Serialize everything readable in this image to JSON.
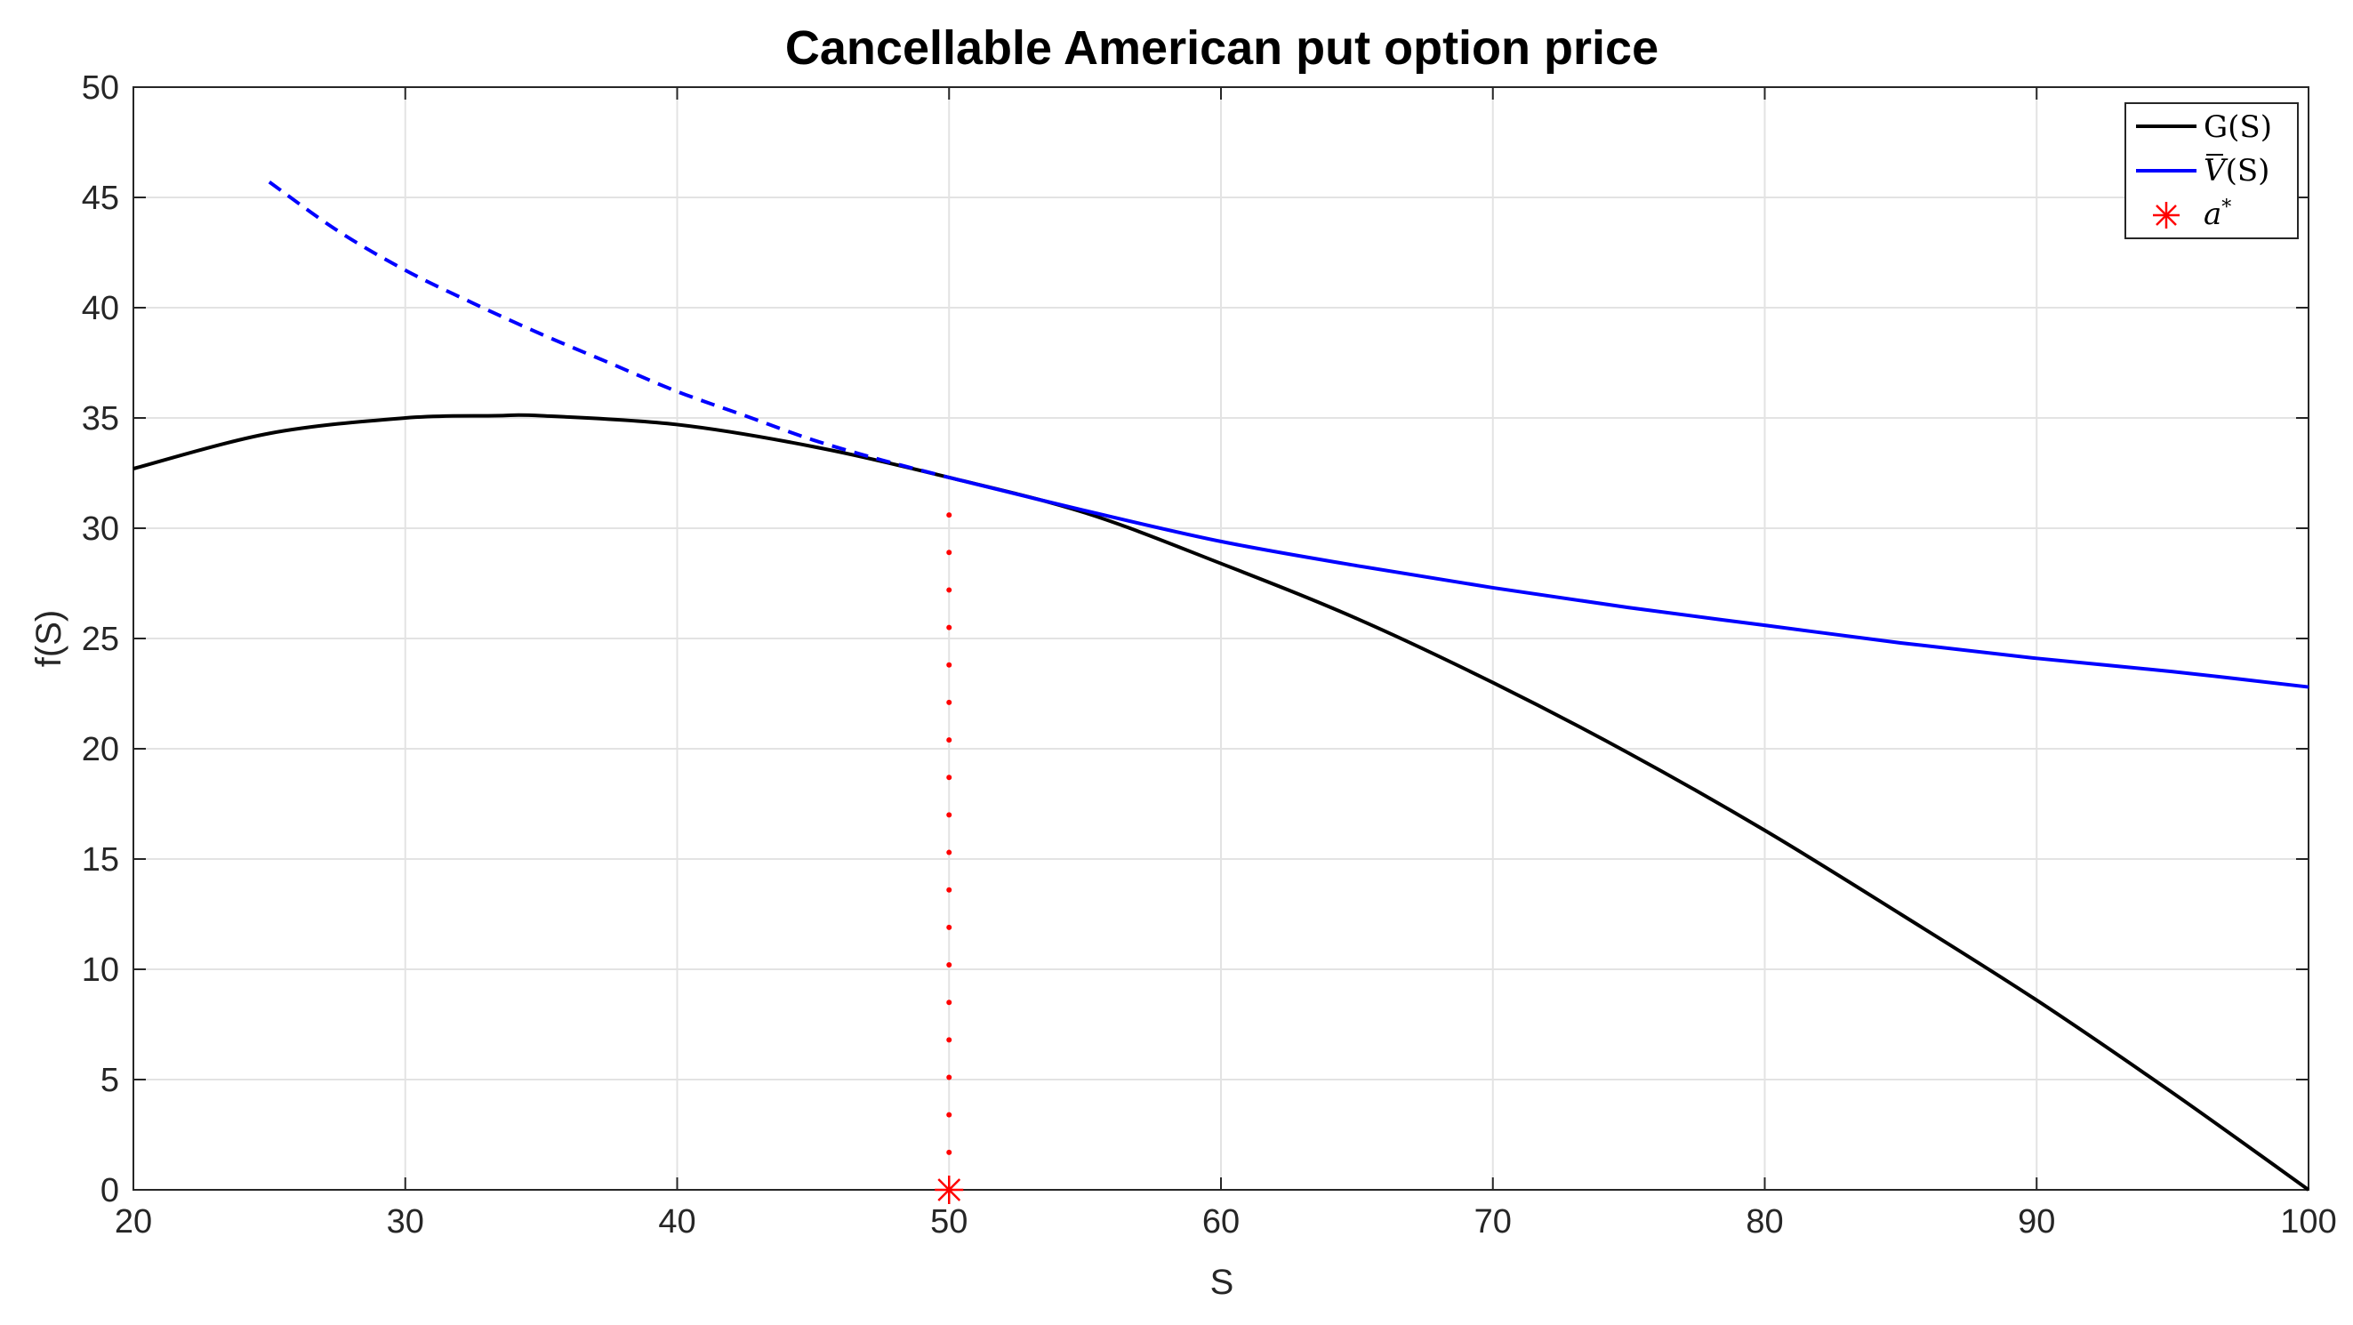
{
  "chart_data": {
    "type": "line",
    "title": "Cancellable American put option price",
    "xlabel": "S",
    "ylabel": "f(S)",
    "xlim": [
      20,
      100
    ],
    "ylim": [
      0,
      50
    ],
    "xticks": [
      20,
      30,
      40,
      50,
      60,
      70,
      80,
      90,
      100
    ],
    "yticks": [
      0,
      5,
      10,
      15,
      20,
      25,
      30,
      35,
      40,
      45,
      50
    ],
    "grid": true,
    "legend_position": "top-right",
    "series": [
      {
        "name": "G(S)",
        "color": "#000000",
        "style": "solid",
        "x": [
          20,
          25,
          30,
          33.3,
          35,
          40,
          45,
          50,
          55,
          60,
          65,
          70,
          75,
          80,
          85,
          90,
          95,
          100
        ],
        "y": [
          32.7,
          34.3,
          35.0,
          35.1,
          35.1,
          34.7,
          33.7,
          32.3,
          30.7,
          28.4,
          25.9,
          23.0,
          19.8,
          16.3,
          12.5,
          8.6,
          4.4,
          0.0
        ]
      },
      {
        "name": "V̄(S)",
        "legend_main": "V",
        "legend_arg": "(S)",
        "color": "#0000ff",
        "style": "solid",
        "x": [
          50,
          55,
          60,
          65,
          70,
          75,
          80,
          85,
          90,
          95,
          100
        ],
        "y": [
          32.3,
          30.8,
          29.4,
          28.3,
          27.3,
          26.4,
          25.6,
          24.8,
          24.1,
          23.5,
          22.8
        ]
      },
      {
        "name": "V̄(S) continuation",
        "color": "#0000ff",
        "style": "dashed",
        "x": [
          25,
          27.5,
          30,
          32.5,
          35,
          37.5,
          40,
          42.5,
          45,
          47.5,
          50
        ],
        "y": [
          45.7,
          43.5,
          41.7,
          40.2,
          38.8,
          37.5,
          36.2,
          35.1,
          34.0,
          33.1,
          32.3
        ]
      },
      {
        "name": "a*",
        "legend_main": "a",
        "legend_sup": "*",
        "color": "#ff0000",
        "style": "marker",
        "x": [
          50
        ],
        "y": [
          0
        ]
      },
      {
        "name": "a* threshold",
        "color": "#ff0000",
        "style": "dotted",
        "x": [
          50,
          50
        ],
        "y": [
          0,
          32.3
        ]
      }
    ]
  }
}
